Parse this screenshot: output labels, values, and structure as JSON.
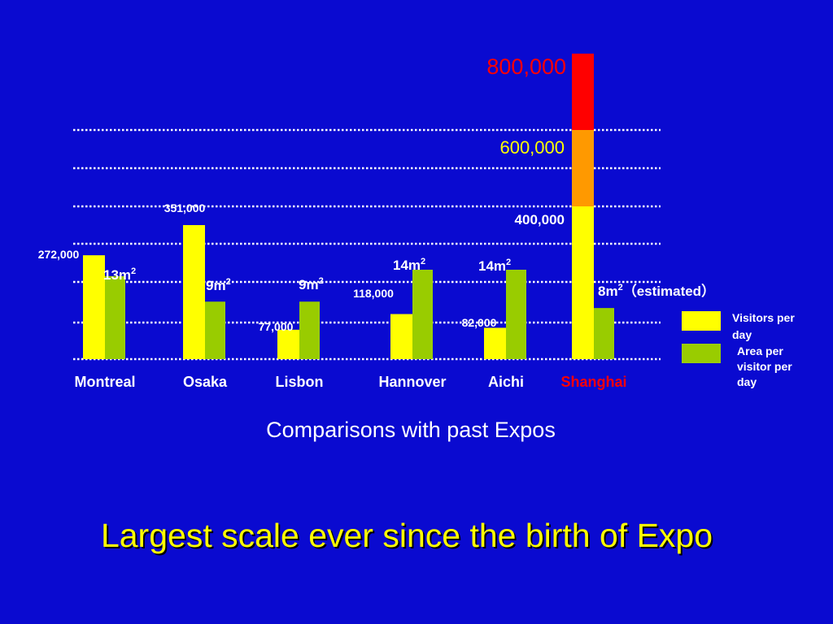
{
  "colors": {
    "background": "#0a0ad0",
    "visitors": "#ffff00",
    "area": "#99cc00",
    "tier_600": "#ff9900",
    "tier_800": "#ff0000",
    "text": "#ffffff",
    "shanghai_label": "#ff0000",
    "headline": "#ffff00"
  },
  "chart_data": {
    "type": "bar",
    "categories": [
      "Montreal",
      "Osaka",
      "Lisbon",
      "Hannover",
      "Aichi",
      "Shanghai"
    ],
    "series": [
      {
        "name": "Visitors per day",
        "values": [
          272000,
          351000,
          77000,
          118000,
          82000,
          800000
        ],
        "labels": [
          "272,000",
          "351,000",
          "77,000",
          "118,000",
          "82,000",
          ""
        ]
      },
      {
        "name": "Area per visitor per day",
        "values": [
          13,
          9,
          9,
          14,
          14,
          8
        ],
        "labels": [
          "13m",
          "9m",
          "9m",
          "14m",
          "14m",
          "8m"
        ],
        "label_suffix": "（estimated）",
        "label_suffix_index": 5
      }
    ],
    "shanghai_tiers": [
      {
        "value": 400000,
        "label": "400,000"
      },
      {
        "value": 600000,
        "label": "600,000"
      },
      {
        "value": 800000,
        "label": "800,000"
      }
    ],
    "highlight_category": "Shanghai",
    "legend": {
      "position": "right",
      "items": [
        {
          "label": "Visitors per day"
        },
        {
          "label": "Area per visitor per day"
        }
      ]
    },
    "grid": true,
    "title": "Comparisons with past Expos",
    "ylim": [
      0,
      800000
    ],
    "area_ylim": [
      0,
      35
    ]
  },
  "headline": "Largest scale ever since the birth of Expo"
}
